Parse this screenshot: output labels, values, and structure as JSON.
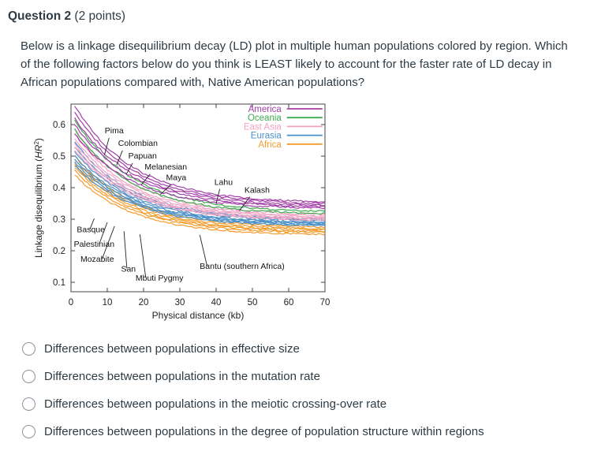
{
  "question": {
    "title": "Question 2",
    "points": "(2 points)",
    "text": "Below is a linkage disequilibrium decay (LD) plot in multiple human populations colored by region. Which of the following factors below do you think is LEAST likely to account for the faster rate of LD decay in African populations compared with, Native American populations?"
  },
  "options": [
    {
      "label": "Differences between populations in effective size"
    },
    {
      "label": "Differences between populations in the mutation rate"
    },
    {
      "label": "Differences between populations in the meiotic crossing-over rate"
    },
    {
      "label": "Differences between populations in the degree of population structure within regions"
    }
  ],
  "colors": {
    "text": "#2d3b45",
    "axis": "#444444"
  },
  "chart_data": {
    "type": "line",
    "title": "",
    "xlabel": "Physical distance (kb)",
    "ylabel_prefix": "Linkage disequilibrium (",
    "ylabel_var": "HR",
    "ylabel_sup": "2",
    "ylabel_suffix": ")",
    "xlim": [
      0,
      70
    ],
    "ylim": [
      0.07,
      0.665
    ],
    "x_ticks": [
      0,
      10,
      20,
      30,
      40,
      50,
      60,
      70
    ],
    "y_ticks": [
      0.1,
      0.2,
      0.3,
      0.4,
      0.5,
      0.6
    ],
    "grid": false,
    "legend_position": "top-right",
    "legend": [
      "America",
      "Oceania",
      "East Asia",
      "Eurasia",
      "Africa"
    ],
    "region_colors": {
      "America": "#a23fa8",
      "Oceania": "#3daa50",
      "East Asia": "#f0a3c3",
      "Eurasia": "#4a90c8",
      "Africa": "#f39c2d"
    },
    "x": [
      1,
      3,
      6,
      10,
      15,
      20,
      25,
      30,
      40,
      50,
      60,
      70
    ],
    "series": [
      {
        "name": "",
        "region": "America",
        "y": [
          0.66,
          0.624,
          0.577,
          0.527,
          0.48,
          0.445,
          0.42,
          0.401,
          0.378,
          0.365,
          0.359,
          0.355
        ]
      },
      {
        "name": "Pima",
        "region": "America",
        "y": [
          0.64,
          0.605,
          0.561,
          0.514,
          0.469,
          0.436,
          0.412,
          0.394,
          0.372,
          0.36,
          0.353,
          0.35
        ]
      },
      {
        "name": "",
        "region": "America",
        "y": [
          0.62,
          0.587,
          0.545,
          0.5,
          0.458,
          0.426,
          0.403,
          0.387,
          0.366,
          0.354,
          0.348,
          0.345
        ]
      },
      {
        "name": "Colombian",
        "region": "America",
        "y": [
          0.6,
          0.569,
          0.529,
          0.487,
          0.446,
          0.417,
          0.395,
          0.38,
          0.36,
          0.349,
          0.343,
          0.34
        ]
      },
      {
        "name": "Maya",
        "region": "America",
        "y": [
          0.57,
          0.542,
          0.506,
          0.468,
          0.431,
          0.404,
          0.385,
          0.371,
          0.353,
          0.343,
          0.338,
          0.335
        ]
      },
      {
        "name": "Papuan",
        "region": "Oceania",
        "y": [
          0.615,
          0.58,
          0.536,
          0.489,
          0.444,
          0.411,
          0.387,
          0.369,
          0.347,
          0.335,
          0.328,
          0.325
        ]
      },
      {
        "name": "Melanesian",
        "region": "Oceania",
        "y": [
          0.585,
          0.553,
          0.513,
          0.469,
          0.427,
          0.397,
          0.375,
          0.359,
          0.338,
          0.327,
          0.321,
          0.318
        ]
      },
      {
        "name": "",
        "region": "East Asia",
        "y": [
          0.585,
          0.553,
          0.512,
          0.467,
          0.425,
          0.395,
          0.372,
          0.356,
          0.335,
          0.324,
          0.318,
          0.315
        ]
      },
      {
        "name": "",
        "region": "East Asia",
        "y": [
          0.57,
          0.539,
          0.5,
          0.457,
          0.416,
          0.387,
          0.365,
          0.35,
          0.33,
          0.319,
          0.313,
          0.31
        ]
      },
      {
        "name": "Lahu",
        "region": "East Asia",
        "y": [
          0.555,
          0.525,
          0.488,
          0.447,
          0.408,
          0.38,
          0.36,
          0.345,
          0.326,
          0.315,
          0.31,
          0.307
        ]
      },
      {
        "name": "",
        "region": "East Asia",
        "y": [
          0.54,
          0.512,
          0.476,
          0.437,
          0.4,
          0.373,
          0.353,
          0.339,
          0.321,
          0.311,
          0.306,
          0.303
        ]
      },
      {
        "name": "",
        "region": "East Asia",
        "y": [
          0.53,
          0.503,
          0.467,
          0.43,
          0.394,
          0.368,
          0.349,
          0.335,
          0.317,
          0.308,
          0.303,
          0.3
        ]
      },
      {
        "name": "",
        "region": "East Asia",
        "y": [
          0.52,
          0.493,
          0.459,
          0.422,
          0.388,
          0.362,
          0.344,
          0.33,
          0.313,
          0.304,
          0.299,
          0.296
        ]
      },
      {
        "name": "Kalash",
        "region": "Eurasia",
        "y": [
          0.545,
          0.516,
          0.478,
          0.438,
          0.4,
          0.372,
          0.352,
          0.337,
          0.318,
          0.308,
          0.303,
          0.3
        ]
      },
      {
        "name": "",
        "region": "Eurasia",
        "y": [
          0.53,
          0.502,
          0.466,
          0.428,
          0.391,
          0.364,
          0.345,
          0.331,
          0.313,
          0.303,
          0.298,
          0.295
        ]
      },
      {
        "name": "Basque",
        "region": "Eurasia",
        "y": [
          0.515,
          0.488,
          0.454,
          0.417,
          0.382,
          0.357,
          0.338,
          0.324,
          0.307,
          0.298,
          0.293,
          0.29
        ]
      },
      {
        "name": "",
        "region": "Eurasia",
        "y": [
          0.5,
          0.475,
          0.442,
          0.408,
          0.375,
          0.351,
          0.333,
          0.32,
          0.304,
          0.295,
          0.29,
          0.288
        ]
      },
      {
        "name": "Palestinian",
        "region": "Eurasia",
        "y": [
          0.49,
          0.466,
          0.434,
          0.401,
          0.369,
          0.346,
          0.329,
          0.316,
          0.3,
          0.292,
          0.287,
          0.285
        ]
      },
      {
        "name": "",
        "region": "Eurasia",
        "y": [
          0.48,
          0.456,
          0.426,
          0.394,
          0.364,
          0.341,
          0.325,
          0.313,
          0.298,
          0.29,
          0.285,
          0.283
        ]
      },
      {
        "name": "Mozabite",
        "region": "Eurasia",
        "y": [
          0.47,
          0.447,
          0.418,
          0.387,
          0.358,
          0.336,
          0.32,
          0.309,
          0.294,
          0.286,
          0.282,
          0.28
        ]
      },
      {
        "name": "",
        "region": "Africa",
        "y": [
          0.5,
          0.473,
          0.439,
          0.402,
          0.367,
          0.341,
          0.323,
          0.309,
          0.292,
          0.283,
          0.278,
          0.275
        ]
      },
      {
        "name": "San",
        "region": "Africa",
        "y": [
          0.49,
          0.464,
          0.43,
          0.394,
          0.36,
          0.335,
          0.317,
          0.303,
          0.287,
          0.277,
          0.273,
          0.27
        ]
      },
      {
        "name": "",
        "region": "Africa",
        "y": [
          0.475,
          0.45,
          0.418,
          0.384,
          0.352,
          0.328,
          0.31,
          0.298,
          0.282,
          0.273,
          0.269,
          0.266
        ]
      },
      {
        "name": "Mbuti Pygmy",
        "region": "Africa",
        "y": [
          0.465,
          0.441,
          0.41,
          0.377,
          0.345,
          0.322,
          0.305,
          0.293,
          0.277,
          0.269,
          0.264,
          0.262
        ]
      },
      {
        "name": "Bantu (southern Africa)",
        "region": "Africa",
        "y": [
          0.455,
          0.431,
          0.401,
          0.369,
          0.339,
          0.316,
          0.3,
          0.288,
          0.273,
          0.265,
          0.26,
          0.258
        ]
      },
      {
        "name": "",
        "region": "Africa",
        "y": [
          0.44,
          0.417,
          0.389,
          0.358,
          0.329,
          0.308,
          0.292,
          0.28,
          0.266,
          0.258,
          0.254,
          0.252
        ]
      }
    ],
    "annotations": [
      {
        "label": "Pima",
        "x": 9.3,
        "y": 0.572,
        "leader": [
          10.5,
          0.558,
          9.2,
          0.503
        ]
      },
      {
        "label": "Colombian",
        "x": 13.0,
        "y": 0.532,
        "leader": [
          14.2,
          0.518,
          12.6,
          0.472
        ]
      },
      {
        "label": "Papuan",
        "x": 15.8,
        "y": 0.492,
        "leader": [
          17.0,
          0.478,
          15.2,
          0.442
        ]
      },
      {
        "label": "Melanesian",
        "x": 20.3,
        "y": 0.457,
        "leader": [
          21.8,
          0.443,
          19.4,
          0.409
        ]
      },
      {
        "label": "Maya",
        "x": 26.2,
        "y": 0.424,
        "leader": [
          27.6,
          0.41,
          24.6,
          0.378
        ]
      },
      {
        "label": "Lahu",
        "x": 39.5,
        "y": 0.409,
        "leader": [
          41.0,
          0.396,
          40.0,
          0.349
        ]
      },
      {
        "label": "Kalash",
        "x": 47.8,
        "y": 0.384,
        "leader": [
          49.3,
          0.371,
          46.4,
          0.327
        ]
      },
      {
        "label": "Basque",
        "x": 1.6,
        "y": 0.259,
        "leader": [
          5.2,
          0.268,
          6.4,
          0.302
        ]
      },
      {
        "label": "Palestinian",
        "x": 0.8,
        "y": 0.212,
        "leader": [
          7.8,
          0.222,
          10.0,
          0.29
        ]
      },
      {
        "label": "Mozabite",
        "x": 2.6,
        "y": 0.165,
        "leader": [
          8.6,
          0.175,
          12.0,
          0.278
        ]
      },
      {
        "label": "San",
        "x": 13.8,
        "y": 0.134,
        "leader": [
          15.4,
          0.144,
          14.6,
          0.262
        ]
      },
      {
        "label": "Mbuti Pygmy",
        "x": 17.8,
        "y": 0.105,
        "leader": [
          20.6,
          0.115,
          19.0,
          0.252
        ]
      },
      {
        "label": "Bantu (southern Africa)",
        "x": 35.5,
        "y": 0.142,
        "leader": [
          37.5,
          0.152,
          35.5,
          0.25
        ]
      }
    ]
  }
}
